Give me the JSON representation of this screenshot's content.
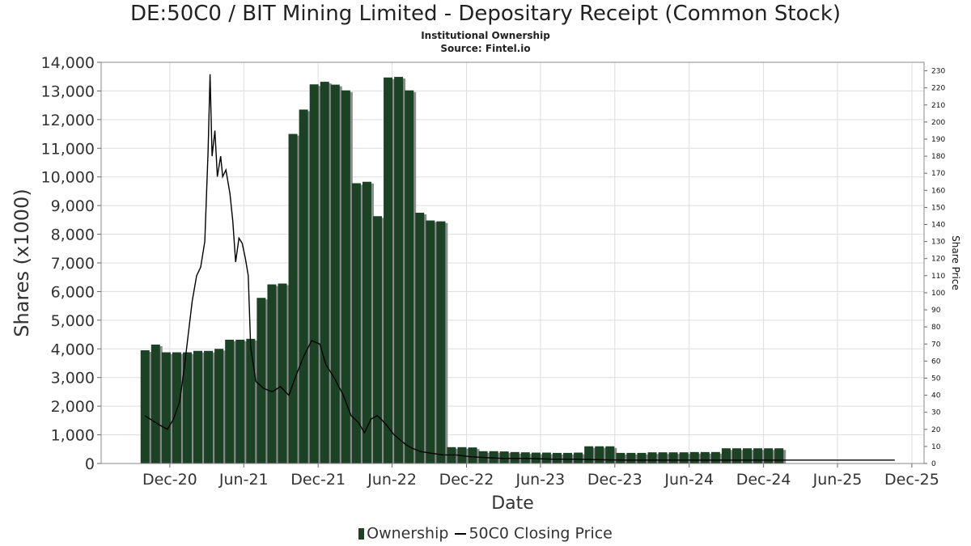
{
  "title": "DE:50C0 / BIT Mining Limited - Depositary Receipt (Common Stock)",
  "subtitle": "Institutional Ownership",
  "source": "Source: Fintel.io",
  "colors": {
    "bar": "#1b4225",
    "bar_shadow": "#8c8c8c",
    "line": "#000000",
    "grid": "#dddddd"
  },
  "chart_data": {
    "type": "bar",
    "xlabel": "Date",
    "ylabel": "Shares (x1000)",
    "y2label": "Share Price",
    "ylim": [
      0,
      14000
    ],
    "y2lim": [
      0,
      235
    ],
    "yticks": [
      "0",
      "1,000",
      "2,000",
      "3,000",
      "4,000",
      "5,000",
      "6,000",
      "7,000",
      "8,000",
      "9,000",
      "10,000",
      "11,000",
      "12,000",
      "13,000",
      "14,000"
    ],
    "y2ticks": [
      "0",
      "10",
      "20",
      "30",
      "40",
      "50",
      "60",
      "70",
      "80",
      "90",
      "100",
      "110",
      "120",
      "130",
      "140",
      "150",
      "160",
      "170",
      "180",
      "190",
      "200",
      "210",
      "220",
      "230"
    ],
    "xticks": [
      {
        "label": "Dec-20",
        "date": "2020-12-01"
      },
      {
        "label": "Jun-21",
        "date": "2021-06-01"
      },
      {
        "label": "Dec-21",
        "date": "2021-12-01"
      },
      {
        "label": "Jun-22",
        "date": "2022-06-01"
      },
      {
        "label": "Dec-22",
        "date": "2022-12-01"
      },
      {
        "label": "Jun-23",
        "date": "2023-06-01"
      },
      {
        "label": "Dec-23",
        "date": "2023-12-01"
      },
      {
        "label": "Jun-24",
        "date": "2024-06-01"
      },
      {
        "label": "Dec-24",
        "date": "2024-12-01"
      },
      {
        "label": "Jun-25",
        "date": "2025-06-01"
      },
      {
        "label": "Dec-25",
        "date": "2025-12-01"
      }
    ],
    "grid": true,
    "legend_placement": "bottom",
    "series": [
      {
        "name": "Ownership",
        "type": "bar",
        "axis": "left",
        "points": [
          [
            "2020-10-01",
            3950
          ],
          [
            "2020-10-27",
            4150
          ],
          [
            "2020-11-22",
            3880
          ],
          [
            "2020-12-18",
            3880
          ],
          [
            "2021-01-13",
            3880
          ],
          [
            "2021-02-08",
            3930
          ],
          [
            "2021-03-06",
            3930
          ],
          [
            "2021-04-01",
            4000
          ],
          [
            "2021-04-27",
            4320
          ],
          [
            "2021-05-23",
            4320
          ],
          [
            "2021-06-18",
            4350
          ],
          [
            "2021-07-14",
            5780
          ],
          [
            "2021-08-09",
            6250
          ],
          [
            "2021-09-04",
            6280
          ],
          [
            "2021-09-30",
            11500
          ],
          [
            "2021-10-26",
            12350
          ],
          [
            "2021-11-21",
            13230
          ],
          [
            "2021-12-17",
            13320
          ],
          [
            "2022-01-12",
            13220
          ],
          [
            "2022-02-07",
            13020
          ],
          [
            "2022-03-05",
            9780
          ],
          [
            "2022-03-31",
            9830
          ],
          [
            "2022-04-26",
            8630
          ],
          [
            "2022-05-22",
            13470
          ],
          [
            "2022-06-17",
            13490
          ],
          [
            "2022-07-13",
            13020
          ],
          [
            "2022-08-08",
            8750
          ],
          [
            "2022-09-03",
            8480
          ],
          [
            "2022-09-29",
            8450
          ],
          [
            "2022-10-25",
            570
          ],
          [
            "2022-11-20",
            570
          ],
          [
            "2022-12-16",
            560
          ],
          [
            "2023-01-11",
            430
          ],
          [
            "2023-02-06",
            430
          ],
          [
            "2023-03-04",
            420
          ],
          [
            "2023-03-30",
            400
          ],
          [
            "2023-04-25",
            390
          ],
          [
            "2023-05-21",
            380
          ],
          [
            "2023-06-16",
            380
          ],
          [
            "2023-07-12",
            370
          ],
          [
            "2023-08-07",
            370
          ],
          [
            "2023-09-02",
            380
          ],
          [
            "2023-09-28",
            600
          ],
          [
            "2023-10-24",
            600
          ],
          [
            "2023-11-19",
            600
          ],
          [
            "2023-12-15",
            370
          ],
          [
            "2024-01-10",
            370
          ],
          [
            "2024-02-05",
            370
          ],
          [
            "2024-03-02",
            390
          ],
          [
            "2024-03-28",
            390
          ],
          [
            "2024-04-23",
            390
          ],
          [
            "2024-05-19",
            390
          ],
          [
            "2024-06-14",
            400
          ],
          [
            "2024-07-10",
            400
          ],
          [
            "2024-08-05",
            400
          ],
          [
            "2024-08-31",
            530
          ],
          [
            "2024-09-26",
            530
          ],
          [
            "2024-10-22",
            530
          ],
          [
            "2024-11-17",
            530
          ],
          [
            "2024-12-13",
            530
          ],
          [
            "2025-01-08",
            530
          ]
        ]
      },
      {
        "name": "50C0 Closing Price",
        "type": "line",
        "axis": "right",
        "points": [
          [
            "2020-10-01",
            28
          ],
          [
            "2020-10-20",
            25
          ],
          [
            "2020-11-10",
            22
          ],
          [
            "2020-11-25",
            20
          ],
          [
            "2020-12-10",
            26
          ],
          [
            "2020-12-25",
            36
          ],
          [
            "2021-01-05",
            55
          ],
          [
            "2021-01-15",
            75
          ],
          [
            "2021-01-25",
            95
          ],
          [
            "2021-02-05",
            110
          ],
          [
            "2021-02-15",
            115
          ],
          [
            "2021-02-25",
            130
          ],
          [
            "2021-03-05",
            182
          ],
          [
            "2021-03-10",
            228
          ],
          [
            "2021-03-15",
            180
          ],
          [
            "2021-03-22",
            195
          ],
          [
            "2021-03-28",
            168
          ],
          [
            "2021-04-05",
            180
          ],
          [
            "2021-04-10",
            168
          ],
          [
            "2021-04-18",
            172
          ],
          [
            "2021-04-28",
            158
          ],
          [
            "2021-05-05",
            142
          ],
          [
            "2021-05-12",
            118
          ],
          [
            "2021-05-20",
            132
          ],
          [
            "2021-05-28",
            129
          ],
          [
            "2021-06-05",
            120
          ],
          [
            "2021-06-12",
            110
          ],
          [
            "2021-06-18",
            68
          ],
          [
            "2021-07-01",
            48
          ],
          [
            "2021-07-20",
            44
          ],
          [
            "2021-08-10",
            42
          ],
          [
            "2021-08-30",
            45
          ],
          [
            "2021-09-20",
            40
          ],
          [
            "2021-10-05",
            50
          ],
          [
            "2021-10-25",
            62
          ],
          [
            "2021-11-15",
            72
          ],
          [
            "2021-12-05",
            70
          ],
          [
            "2021-12-20",
            58
          ],
          [
            "2022-01-10",
            50
          ],
          [
            "2022-02-01",
            40
          ],
          [
            "2022-02-20",
            28
          ],
          [
            "2022-03-10",
            24
          ],
          [
            "2022-03-25",
            18
          ],
          [
            "2022-04-10",
            26
          ],
          [
            "2022-04-25",
            28
          ],
          [
            "2022-05-05",
            26
          ],
          [
            "2022-05-20",
            22
          ],
          [
            "2022-06-05",
            17
          ],
          [
            "2022-06-20",
            14
          ],
          [
            "2022-07-05",
            11
          ],
          [
            "2022-07-20",
            9
          ],
          [
            "2022-08-10",
            7
          ],
          [
            "2022-09-05",
            6
          ],
          [
            "2022-10-05",
            5
          ],
          [
            "2022-11-05",
            5
          ],
          [
            "2022-12-10",
            4
          ],
          [
            "2023-01-10",
            3.5
          ],
          [
            "2023-03-01",
            3
          ],
          [
            "2023-05-01",
            3
          ],
          [
            "2023-07-01",
            2.5
          ],
          [
            "2023-09-01",
            2.5
          ],
          [
            "2023-11-01",
            2.2
          ],
          [
            "2024-01-01",
            2
          ],
          [
            "2024-03-01",
            2
          ],
          [
            "2024-05-01",
            2
          ],
          [
            "2024-07-01",
            2
          ],
          [
            "2024-09-01",
            2
          ],
          [
            "2024-11-01",
            2
          ],
          [
            "2025-01-01",
            2
          ],
          [
            "2025-03-01",
            2
          ],
          [
            "2025-05-01",
            2
          ],
          [
            "2025-07-01",
            2
          ],
          [
            "2025-09-01",
            2
          ],
          [
            "2025-10-20",
            2
          ]
        ]
      }
    ]
  }
}
